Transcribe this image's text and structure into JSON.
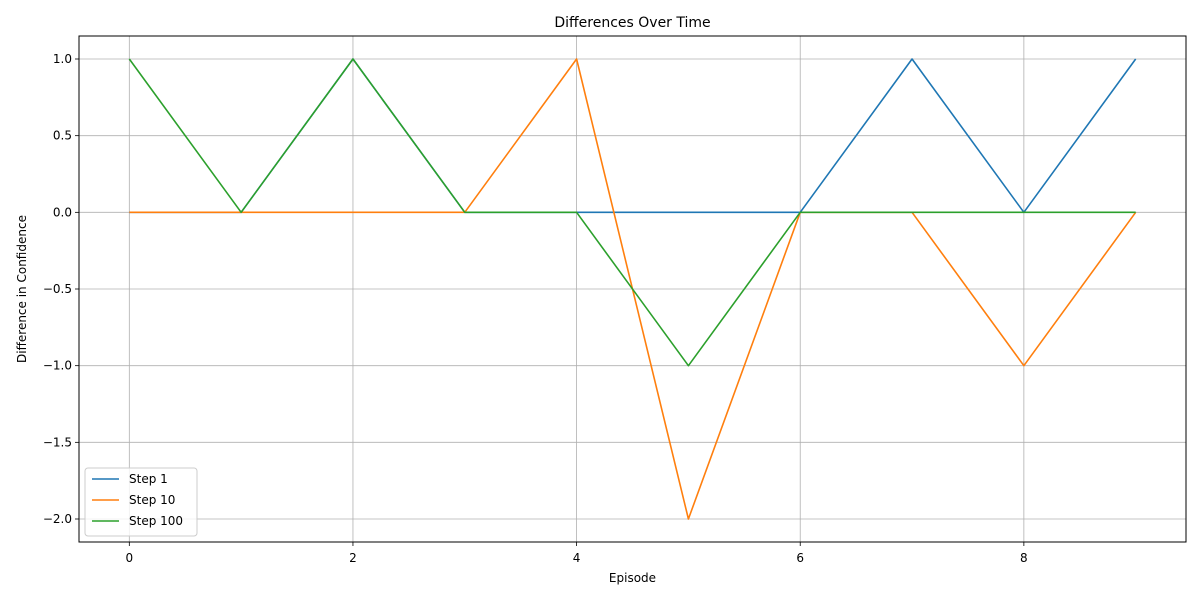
{
  "chart_data": {
    "type": "line",
    "title": "Differences Over Time",
    "xlabel": "Episode",
    "ylabel": "Difference in Confidence",
    "x": [
      0,
      1,
      2,
      3,
      4,
      5,
      6,
      7,
      8,
      9
    ],
    "xlim": [
      -0.45,
      9.45
    ],
    "ylim": [
      -2.15,
      1.15
    ],
    "xticks": [
      0,
      2,
      4,
      6,
      8
    ],
    "xtick_labels": [
      "0",
      "2",
      "4",
      "6",
      "8"
    ],
    "yticks": [
      1.0,
      0.5,
      0.0,
      -0.5,
      -1.0,
      -1.5,
      -2.0
    ],
    "ytick_labels": [
      "1.0",
      "0.5",
      "0.0",
      "−0.5",
      "−1.0",
      "−1.5",
      "−2.0"
    ],
    "grid": true,
    "legend_position": "lower-left",
    "series": [
      {
        "name": "Step 1",
        "color": "#1f77b4",
        "values": [
          0,
          0,
          1,
          0,
          0,
          0,
          0,
          1,
          0,
          1
        ]
      },
      {
        "name": "Step 10",
        "color": "#ff7f0e",
        "values": [
          0,
          0,
          0,
          0,
          1,
          -2,
          0,
          0,
          -1,
          0
        ]
      },
      {
        "name": "Step 100",
        "color": "#2ca02c",
        "values": [
          1,
          0,
          1,
          0,
          0,
          -1,
          0,
          0,
          0,
          0
        ]
      }
    ]
  }
}
